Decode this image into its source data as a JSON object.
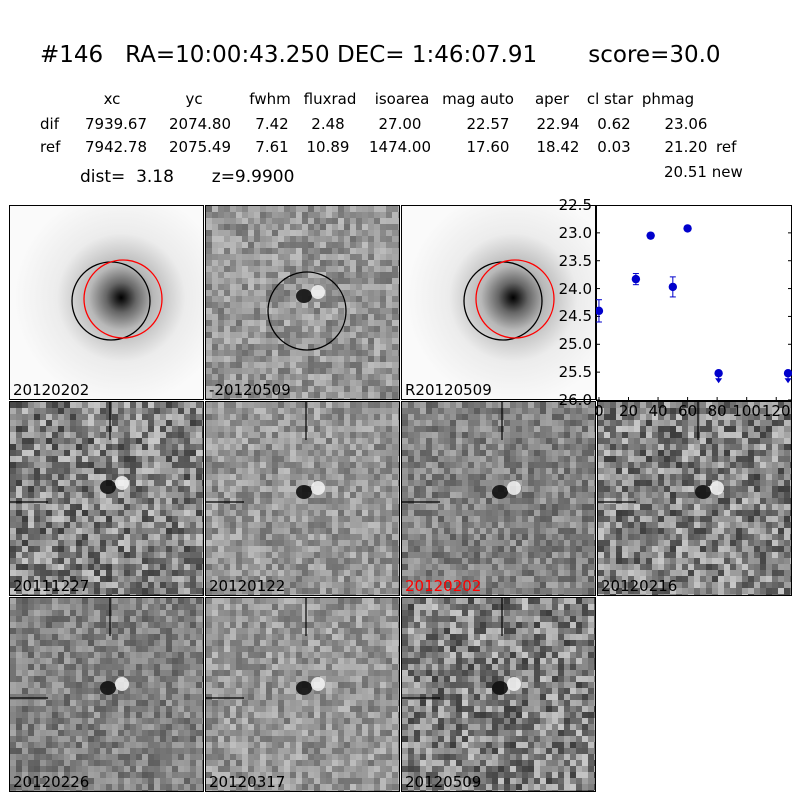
{
  "header": {
    "title": "#146   RA=10:00:43.250 DEC= 1:46:07.91       score=30.0",
    "columns": [
      "xc",
      "yc",
      "fwhm",
      "fluxrad",
      "isoarea",
      "mag auto",
      "aper",
      "cl star",
      "phmag"
    ],
    "rows": [
      {
        "label": "dif",
        "values": [
          "7939.67",
          "2074.80",
          "7.42",
          "2.48",
          "27.00",
          "22.57",
          "22.94",
          "0.62",
          "23.06"
        ],
        "extra": ""
      },
      {
        "label": "ref",
        "values": [
          "7942.78",
          "2075.49",
          "7.61",
          "10.89",
          "1474.00",
          "17.60",
          "18.42",
          "0.03",
          "21.20"
        ],
        "extra": "ref"
      }
    ],
    "new_line": "20.51 new",
    "dist_line": "dist=  3.18       z=9.9900"
  },
  "panels": [
    {
      "label": "20120202",
      "kind": "galaxy",
      "label_color": "#000000"
    },
    {
      "label": "-20120509",
      "kind": "diffcircle",
      "label_color": "#000000"
    },
    {
      "label": "R20120509",
      "kind": "galaxy",
      "label_color": "#000000"
    },
    {
      "label": "20111227",
      "kind": "stamp",
      "label_color": "#000000"
    },
    {
      "label": "20120122",
      "kind": "stamp",
      "label_color": "#000000"
    },
    {
      "label": "20120202",
      "kind": "stamp",
      "label_color": "#ff0000"
    },
    {
      "label": "20120216",
      "kind": "stamp",
      "label_color": "#000000"
    },
    {
      "label": "20120226",
      "kind": "stamp",
      "label_color": "#000000"
    },
    {
      "label": "20120317",
      "kind": "stamp",
      "label_color": "#000000"
    },
    {
      "label": "20120509",
      "kind": "stamp",
      "label_color": "#000000"
    }
  ],
  "chart_data": {
    "type": "scatter",
    "x_ticks": [
      "0",
      "20",
      "40",
      "60",
      "80",
      "100",
      "120"
    ],
    "y_ticks": [
      "22.5",
      "23.0",
      "23.5",
      "24.0",
      "24.5",
      "25.0",
      "25.5",
      "26.0"
    ],
    "xlim": [
      -2,
      130
    ],
    "ylim": [
      26.0,
      22.5
    ],
    "y_inverted": true,
    "marker_color": "#0000cc",
    "points": [
      {
        "x": 0,
        "y": 24.4,
        "err": 0.2
      },
      {
        "x": 25,
        "y": 23.83,
        "err": 0.1
      },
      {
        "x": 35,
        "y": 23.05,
        "err": 0.04
      },
      {
        "x": 50,
        "y": 23.97,
        "err": 0.18
      },
      {
        "x": 60,
        "y": 22.92,
        "err": 0.04
      }
    ],
    "upper_limits": [
      {
        "x": 81,
        "y": 25.52
      },
      {
        "x": 128,
        "y": 25.52
      }
    ]
  }
}
